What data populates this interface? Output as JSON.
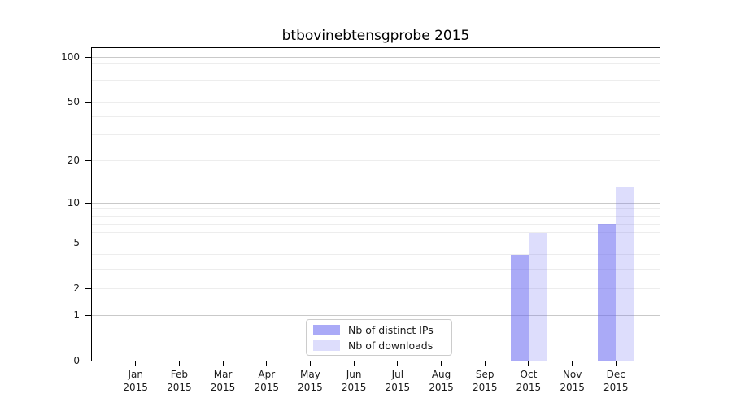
{
  "title": "btbovinebtensgprobe 2015",
  "chart_data": {
    "type": "bar",
    "title": "btbovinebtensgprobe 2015",
    "categories": [
      "Jan",
      "Feb",
      "Mar",
      "Apr",
      "May",
      "Jun",
      "Jul",
      "Aug",
      "Sep",
      "Oct",
      "Nov",
      "Dec"
    ],
    "category_year": "2015",
    "series": [
      {
        "name": "Nb of distinct IPs",
        "color": "rgba(100,100,240,0.55)",
        "values": [
          0,
          0,
          0,
          0,
          0,
          0,
          0,
          0,
          0,
          4,
          0,
          7
        ]
      },
      {
        "name": "Nb of downloads",
        "color": "rgba(100,100,240,0.22)",
        "values": [
          0,
          0,
          0,
          0,
          0,
          0,
          0,
          0,
          0,
          6,
          0,
          13
        ]
      }
    ],
    "yscale": "log1p",
    "ylim": [
      0,
      115
    ],
    "yticks": [
      0,
      1,
      2,
      5,
      10,
      20,
      50,
      100
    ],
    "major_gridlines": [
      1,
      10,
      100
    ],
    "minor_gridlines": [
      2,
      3,
      4,
      5,
      6,
      7,
      8,
      9,
      20,
      30,
      40,
      50,
      60,
      70,
      80,
      90
    ],
    "grid": true,
    "legend_position": "lower center",
    "axis_color": "#000000",
    "tick_label_color": "#1a1a1a"
  }
}
